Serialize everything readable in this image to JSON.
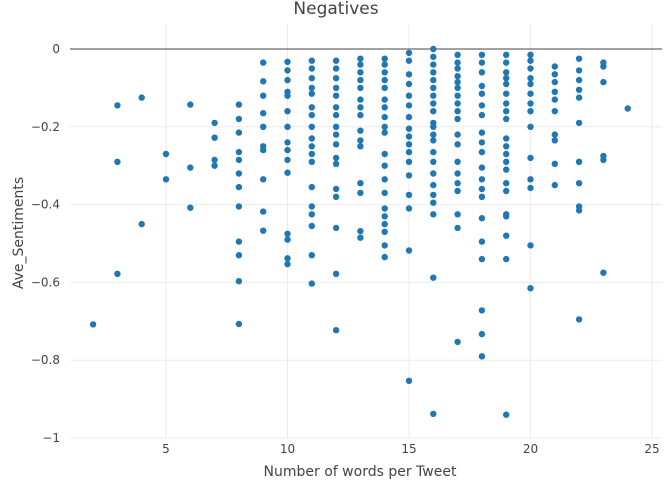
{
  "chart_data": {
    "type": "scatter",
    "title": "Negatives",
    "xlabel": "Number of words per Tweet",
    "ylabel": "Ave_Sentiments",
    "xlim": [
      1,
      25.5
    ],
    "ylim": [
      -1,
      0.06
    ],
    "x_ticks": [
      5,
      10,
      15,
      20,
      25
    ],
    "y_ticks": [
      0,
      -0.2,
      -0.4,
      -0.6,
      -0.8,
      -1
    ],
    "x_tick_labels": [
      "5",
      "10",
      "15",
      "20",
      "25"
    ],
    "y_tick_labels": [
      "0",
      "−0.2",
      "−0.4",
      "−0.6",
      "−0.8",
      "−1"
    ],
    "grid": true,
    "color": "#1f77b4",
    "series": [
      {
        "points": [
          [
            2,
            -0.708
          ],
          [
            3,
            -0.145
          ],
          [
            3,
            -0.29
          ],
          [
            3,
            -0.578
          ],
          [
            4,
            -0.125
          ],
          [
            4,
            -0.45
          ],
          [
            5,
            -0.27
          ],
          [
            5,
            -0.335
          ],
          [
            6,
            -0.143
          ],
          [
            6,
            -0.305
          ],
          [
            6,
            -0.408
          ],
          [
            7,
            -0.19
          ],
          [
            7,
            -0.228
          ],
          [
            7,
            -0.285
          ],
          [
            7,
            -0.3
          ],
          [
            8,
            -0.143
          ],
          [
            8,
            -0.18
          ],
          [
            8,
            -0.215
          ],
          [
            8,
            -0.265
          ],
          [
            8,
            -0.285
          ],
          [
            8,
            -0.32
          ],
          [
            8,
            -0.355
          ],
          [
            8,
            -0.405
          ],
          [
            8,
            -0.495
          ],
          [
            8,
            -0.53
          ],
          [
            8,
            -0.597
          ],
          [
            8,
            -0.707
          ],
          [
            9,
            -0.035
          ],
          [
            9,
            -0.083
          ],
          [
            9,
            -0.12
          ],
          [
            9,
            -0.165
          ],
          [
            9,
            -0.2
          ],
          [
            9,
            -0.25
          ],
          [
            9,
            -0.26
          ],
          [
            9,
            -0.335
          ],
          [
            9,
            -0.418
          ],
          [
            9,
            -0.467
          ],
          [
            10,
            -0.033
          ],
          [
            10,
            -0.055
          ],
          [
            10,
            -0.08
          ],
          [
            10,
            -0.11
          ],
          [
            10,
            -0.12
          ],
          [
            10,
            -0.16
          ],
          [
            10,
            -0.2
          ],
          [
            10,
            -0.24
          ],
          [
            10,
            -0.26
          ],
          [
            10,
            -0.285
          ],
          [
            10,
            -0.318
          ],
          [
            10,
            -0.475
          ],
          [
            10,
            -0.49
          ],
          [
            10,
            -0.538
          ],
          [
            10,
            -0.553
          ],
          [
            11,
            -0.03
          ],
          [
            11,
            -0.05
          ],
          [
            11,
            -0.075
          ],
          [
            11,
            -0.1
          ],
          [
            11,
            -0.115
          ],
          [
            11,
            -0.15
          ],
          [
            11,
            -0.17
          ],
          [
            11,
            -0.2
          ],
          [
            11,
            -0.23
          ],
          [
            11,
            -0.25
          ],
          [
            11,
            -0.27
          ],
          [
            11,
            -0.29
          ],
          [
            11,
            -0.355
          ],
          [
            11,
            -0.405
          ],
          [
            11,
            -0.425
          ],
          [
            11,
            -0.455
          ],
          [
            11,
            -0.53
          ],
          [
            11,
            -0.603
          ],
          [
            12,
            -0.03
          ],
          [
            12,
            -0.05
          ],
          [
            12,
            -0.075
          ],
          [
            12,
            -0.1
          ],
          [
            12,
            -0.12
          ],
          [
            12,
            -0.15
          ],
          [
            12,
            -0.17
          ],
          [
            12,
            -0.2
          ],
          [
            12,
            -0.22
          ],
          [
            12,
            -0.245
          ],
          [
            12,
            -0.28
          ],
          [
            12,
            -0.295
          ],
          [
            12,
            -0.36
          ],
          [
            12,
            -0.38
          ],
          [
            12,
            -0.46
          ],
          [
            12,
            -0.578
          ],
          [
            12,
            -0.723
          ],
          [
            13,
            -0.025
          ],
          [
            13,
            -0.04
          ],
          [
            13,
            -0.06
          ],
          [
            13,
            -0.08
          ],
          [
            13,
            -0.1
          ],
          [
            13,
            -0.13
          ],
          [
            13,
            -0.15
          ],
          [
            13,
            -0.17
          ],
          [
            13,
            -0.21
          ],
          [
            13,
            -0.235
          ],
          [
            13,
            -0.25
          ],
          [
            13,
            -0.345
          ],
          [
            13,
            -0.37
          ],
          [
            13,
            -0.468
          ],
          [
            13,
            -0.485
          ],
          [
            14,
            -0.025
          ],
          [
            14,
            -0.04
          ],
          [
            14,
            -0.06
          ],
          [
            14,
            -0.08
          ],
          [
            14,
            -0.1
          ],
          [
            14,
            -0.13
          ],
          [
            14,
            -0.15
          ],
          [
            14,
            -0.175
          ],
          [
            14,
            -0.2
          ],
          [
            14,
            -0.215
          ],
          [
            14,
            -0.27
          ],
          [
            14,
            -0.3
          ],
          [
            14,
            -0.335
          ],
          [
            14,
            -0.37
          ],
          [
            14,
            -0.41
          ],
          [
            14,
            -0.43
          ],
          [
            14,
            -0.45
          ],
          [
            14,
            -0.47
          ],
          [
            14,
            -0.505
          ],
          [
            14,
            -0.535
          ],
          [
            15,
            -0.01
          ],
          [
            15,
            -0.03
          ],
          [
            15,
            -0.065
          ],
          [
            15,
            -0.09
          ],
          [
            15,
            -0.12
          ],
          [
            15,
            -0.145
          ],
          [
            15,
            -0.175
          ],
          [
            15,
            -0.205
          ],
          [
            15,
            -0.225
          ],
          [
            15,
            -0.245
          ],
          [
            15,
            -0.265
          ],
          [
            15,
            -0.29
          ],
          [
            15,
            -0.325
          ],
          [
            15,
            -0.375
          ],
          [
            15,
            -0.41
          ],
          [
            15,
            -0.518
          ],
          [
            15,
            -0.853
          ],
          [
            16,
            0
          ],
          [
            16,
            -0.02
          ],
          [
            16,
            -0.04
          ],
          [
            16,
            -0.06
          ],
          [
            16,
            -0.08
          ],
          [
            16,
            -0.1
          ],
          [
            16,
            -0.12
          ],
          [
            16,
            -0.14
          ],
          [
            16,
            -0.16
          ],
          [
            16,
            -0.19
          ],
          [
            16,
            -0.2
          ],
          [
            16,
            -0.22
          ],
          [
            16,
            -0.235
          ],
          [
            16,
            -0.265
          ],
          [
            16,
            -0.29
          ],
          [
            16,
            -0.32
          ],
          [
            16,
            -0.35
          ],
          [
            16,
            -0.375
          ],
          [
            16,
            -0.395
          ],
          [
            16,
            -0.425
          ],
          [
            16,
            -0.588
          ],
          [
            16,
            -0.938
          ],
          [
            17,
            -0.015
          ],
          [
            17,
            -0.035
          ],
          [
            17,
            -0.05
          ],
          [
            17,
            -0.07
          ],
          [
            17,
            -0.085
          ],
          [
            17,
            -0.1
          ],
          [
            17,
            -0.12
          ],
          [
            17,
            -0.14
          ],
          [
            17,
            -0.16
          ],
          [
            17,
            -0.18
          ],
          [
            17,
            -0.22
          ],
          [
            17,
            -0.245
          ],
          [
            17,
            -0.29
          ],
          [
            17,
            -0.32
          ],
          [
            17,
            -0.345
          ],
          [
            17,
            -0.365
          ],
          [
            17,
            -0.425
          ],
          [
            17,
            -0.46
          ],
          [
            17,
            -0.753
          ],
          [
            18,
            -0.015
          ],
          [
            18,
            -0.035
          ],
          [
            18,
            -0.06
          ],
          [
            18,
            -0.095
          ],
          [
            18,
            -0.115
          ],
          [
            18,
            -0.145
          ],
          [
            18,
            -0.17
          ],
          [
            18,
            -0.215
          ],
          [
            18,
            -0.24
          ],
          [
            18,
            -0.265
          ],
          [
            18,
            -0.305
          ],
          [
            18,
            -0.335
          ],
          [
            18,
            -0.36
          ],
          [
            18,
            -0.38
          ],
          [
            18,
            -0.435
          ],
          [
            18,
            -0.495
          ],
          [
            18,
            -0.54
          ],
          [
            18,
            -0.672
          ],
          [
            18,
            -0.733
          ],
          [
            18,
            -0.79
          ],
          [
            19,
            -0.015
          ],
          [
            19,
            -0.035
          ],
          [
            19,
            -0.06
          ],
          [
            19,
            -0.075
          ],
          [
            19,
            -0.09
          ],
          [
            19,
            -0.115
          ],
          [
            19,
            -0.14
          ],
          [
            19,
            -0.16
          ],
          [
            19,
            -0.18
          ],
          [
            19,
            -0.23
          ],
          [
            19,
            -0.25
          ],
          [
            19,
            -0.27
          ],
          [
            19,
            -0.29
          ],
          [
            19,
            -0.31
          ],
          [
            19,
            -0.345
          ],
          [
            19,
            -0.365
          ],
          [
            19,
            -0.425
          ],
          [
            19,
            -0.43
          ],
          [
            19,
            -0.48
          ],
          [
            19,
            -0.54
          ],
          [
            19,
            -0.94
          ],
          [
            20,
            -0.015
          ],
          [
            20,
            -0.03
          ],
          [
            20,
            -0.05
          ],
          [
            20,
            -0.075
          ],
          [
            20,
            -0.09
          ],
          [
            20,
            -0.115
          ],
          [
            20,
            -0.14
          ],
          [
            20,
            -0.16
          ],
          [
            20,
            -0.2
          ],
          [
            20,
            -0.28
          ],
          [
            20,
            -0.335
          ],
          [
            20,
            -0.357
          ],
          [
            20,
            -0.505
          ],
          [
            20,
            -0.615
          ],
          [
            21,
            -0.045
          ],
          [
            21,
            -0.065
          ],
          [
            21,
            -0.085
          ],
          [
            21,
            -0.11
          ],
          [
            21,
            -0.13
          ],
          [
            21,
            -0.16
          ],
          [
            21,
            -0.22
          ],
          [
            21,
            -0.235
          ],
          [
            21,
            -0.295
          ],
          [
            21,
            -0.35
          ],
          [
            22,
            -0.025
          ],
          [
            22,
            -0.055
          ],
          [
            22,
            -0.08
          ],
          [
            22,
            -0.105
          ],
          [
            22,
            -0.125
          ],
          [
            22,
            -0.19
          ],
          [
            22,
            -0.29
          ],
          [
            22,
            -0.345
          ],
          [
            22,
            -0.405
          ],
          [
            22,
            -0.415
          ],
          [
            22,
            -0.695
          ],
          [
            23,
            -0.035
          ],
          [
            23,
            -0.045
          ],
          [
            23,
            -0.085
          ],
          [
            23,
            -0.275
          ],
          [
            23,
            -0.285
          ],
          [
            23,
            -0.575
          ],
          [
            24,
            -0.153
          ]
        ]
      }
    ]
  }
}
